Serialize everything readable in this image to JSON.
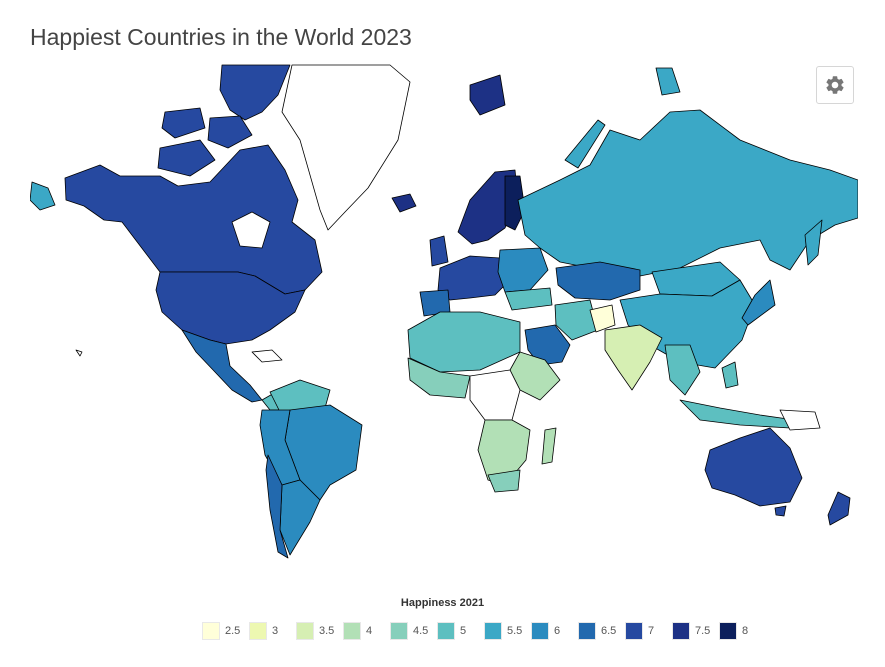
{
  "title": "Happiest Countries in the World 2023",
  "settings_icon": "gear-icon",
  "legend": {
    "title": "Happiness 2021",
    "items": [
      {
        "label": "2.5",
        "color": "#ffffd9"
      },
      {
        "label": "3",
        "color": "#edf8b1"
      },
      {
        "label": "3.5",
        "color": "#d6efb3"
      },
      {
        "label": "4",
        "color": "#b2e0b6"
      },
      {
        "label": "4.5",
        "color": "#86cfbb"
      },
      {
        "label": "5",
        "color": "#5dbfc0"
      },
      {
        "label": "5.5",
        "color": "#3ba8c6"
      },
      {
        "label": "6",
        "color": "#2b8bbf"
      },
      {
        "label": "6.5",
        "color": "#2269ae"
      },
      {
        "label": "7",
        "color": "#2649a0"
      },
      {
        "label": "7.5",
        "color": "#1d3185"
      },
      {
        "label": "8",
        "color": "#0c1f5c"
      }
    ]
  },
  "colors": {
    "no_data": "#ffffff",
    "border": "#000000"
  }
}
